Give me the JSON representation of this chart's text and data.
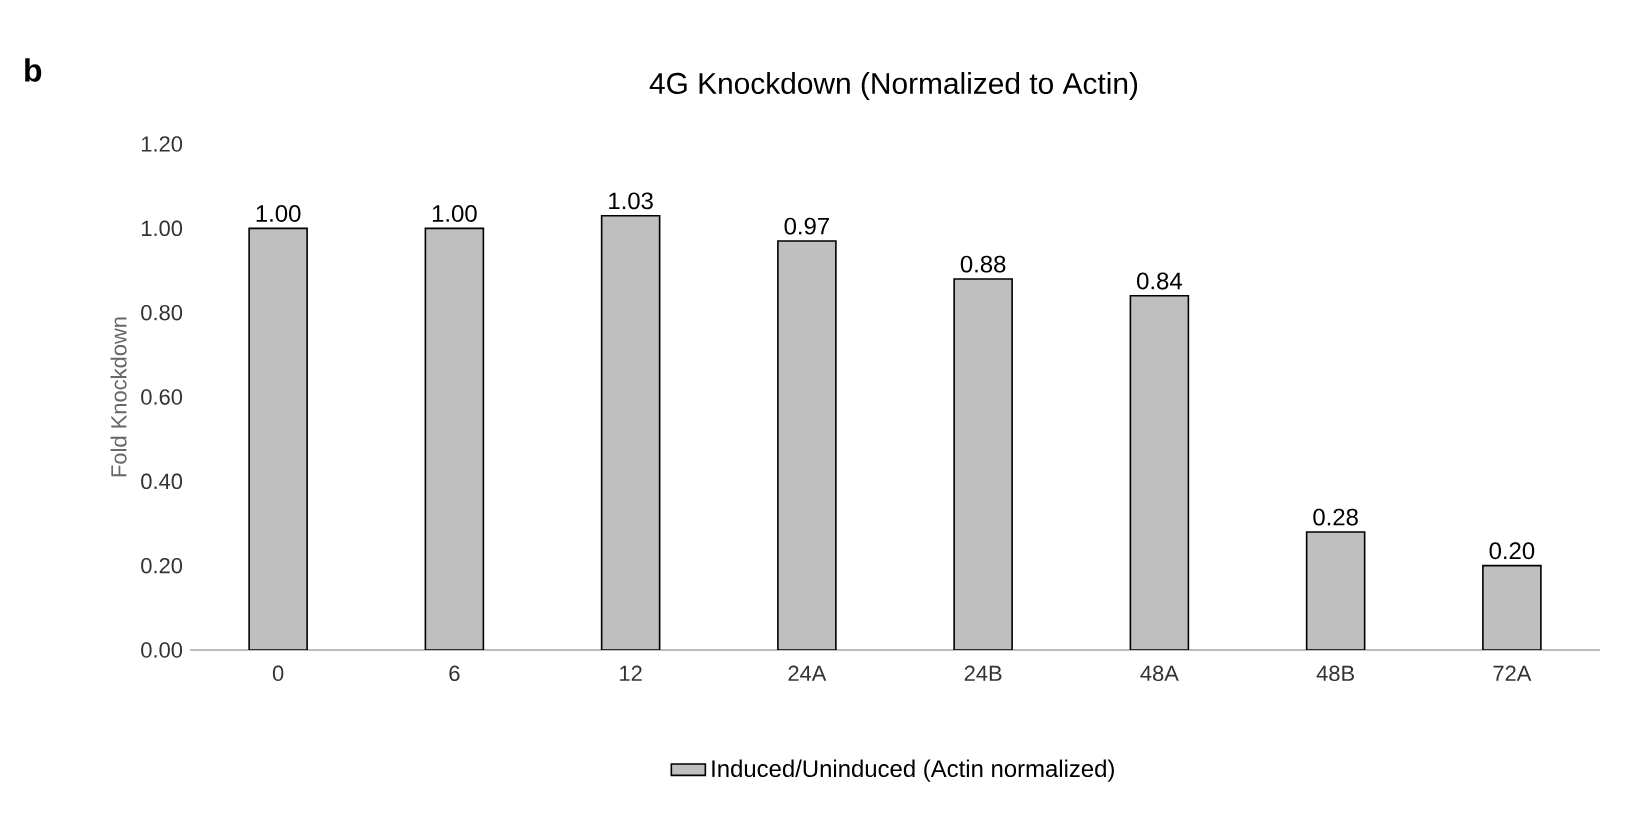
{
  "chart_data": {
    "type": "bar",
    "title": "4G Knockdown (Normalized to Actin)",
    "ylabel": "Fold Knockdown",
    "annotations": [
      "b"
    ],
    "categories": [
      "0",
      "6",
      "12",
      "24A",
      "24B",
      "48A",
      "48B",
      "72A"
    ],
    "series": [
      {
        "name": "Induced/Uninduced (Actin normalized)",
        "color": "#bfbfbf",
        "values": [
          1.0,
          1.0,
          1.03,
          0.97,
          0.88,
          0.84,
          0.28,
          0.2
        ],
        "value_labels": [
          "1.00",
          "1.00",
          "1.03",
          "0.97",
          "0.88",
          "0.84",
          "0.28",
          "0.20"
        ]
      }
    ],
    "ylim": [
      0,
      1.2
    ],
    "yticks": [
      {
        "value": 0,
        "label": "0.00"
      },
      {
        "value": 0.2,
        "label": "0.20"
      },
      {
        "value": 0.4,
        "label": "0.40"
      },
      {
        "value": 0.6,
        "label": "0.60"
      },
      {
        "value": 0.8,
        "label": "0.80"
      },
      {
        "value": 1.0,
        "label": "1.00"
      },
      {
        "value": 1.2,
        "label": "1.20"
      }
    ],
    "grid": false,
    "legend": "bottom"
  }
}
